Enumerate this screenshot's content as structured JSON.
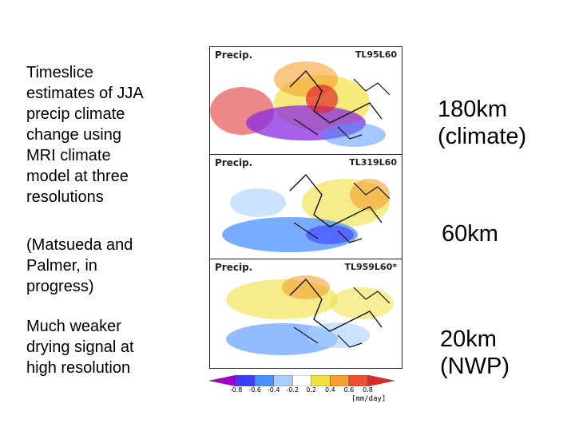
{
  "left_text": {
    "paragraph1": "Timeslice\nestimates of JJA\nprecip climate\nchange using\nMRI climate\nmodel at three\nresolutions",
    "paragraph2": "(Matsueda and\nPalmer, in\nprogress)",
    "paragraph3": "Much weaker\ndrying signal at\nhigh resolution"
  },
  "panels": [
    {
      "title": "Precip.",
      "model": "TL95L60",
      "resolution_label": "180km\n(climate)"
    },
    {
      "title": "Precip.",
      "model": "TL319L60",
      "resolution_label": "60km"
    },
    {
      "title": "Precip.",
      "model": "TL959L60*",
      "resolution_label": "20km\n(NWP)"
    }
  ],
  "colorbar": {
    "ticks": [
      "-0.8",
      "-0.6",
      "-0.4",
      "-0.2",
      "0.2",
      "0.4",
      "0.6",
      "0.8"
    ],
    "unit": "[mm/day]",
    "colors": [
      "#a000c8",
      "#3c3cff",
      "#4a90ff",
      "#a8d0ff",
      "#ffffff",
      "#f0e040",
      "#f5a030",
      "#f05030",
      "#e02828"
    ]
  }
}
